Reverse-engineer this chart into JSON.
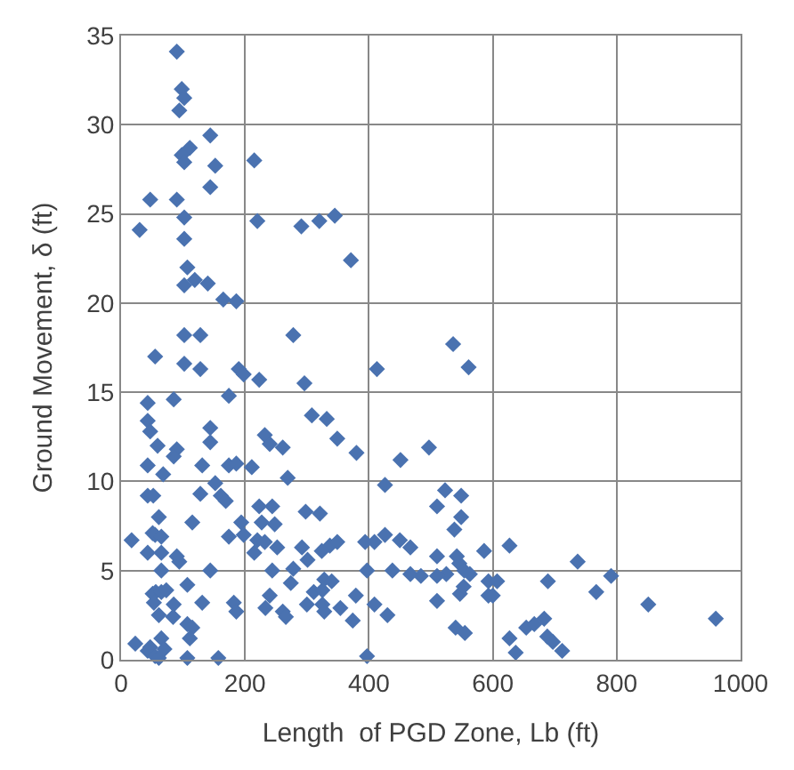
{
  "chart_data": {
    "type": "scatter",
    "xlabel": "Length  of PGD Zone, Lb (ft)",
    "ylabel": "Ground Movement, δ (ft)",
    "xlim": [
      0,
      1000
    ],
    "xticks": [
      0,
      200,
      400,
      600,
      800,
      1000
    ],
    "ylim": [
      0,
      35
    ],
    "yticks": [
      0,
      5,
      10,
      15,
      20,
      25,
      30,
      35
    ],
    "grid": true,
    "marker": "diamond",
    "series": [
      {
        "color": "#4a72b0",
        "x": [
          90,
          98,
          102,
          94,
          144,
          111,
          98,
          102,
          152,
          215,
          144,
          47,
          90,
          102,
          30,
          220,
          291,
          320,
          345,
          371,
          102,
          107,
          102,
          119,
          140,
          165,
          186,
          102,
          128,
          278,
          55,
          102,
          128,
          190,
          198,
          223,
          296,
          413,
          536,
          561,
          43,
          85,
          174,
          43,
          47,
          144,
          144,
          59,
          90,
          85,
          308,
          332,
          232,
          240,
          261,
          349,
          380,
          497,
          451,
          43,
          131,
          68,
          174,
          186,
          211,
          152,
          161,
          169,
          128,
          269,
          426,
          523,
          549,
          510,
          549,
          43,
          52,
          61,
          115,
          223,
          244,
          227,
          248,
          298,
          321,
          194,
          174,
          198,
          51,
          55,
          65,
          17,
          220,
          232,
          252,
          292,
          337,
          349,
          324,
          426,
          450,
          467,
          394,
          409,
          586,
          627,
          538,
          43,
          65,
          90,
          94,
          215,
          301,
          278,
          244,
          438,
          510,
          542,
          546,
          525,
          554,
          563,
          467,
          484,
          397,
          737,
          791,
          689,
          65,
          51,
          56,
          65,
          73,
          53,
          61,
          85,
          107,
          131,
          144,
          182,
          186,
          233,
          240,
          261,
          266,
          274,
          300,
          311,
          325,
          328,
          340,
          325,
          328,
          354,
          379,
          374,
          409,
          430,
          510,
          510,
          593,
          607,
          593,
          600,
          547,
          553,
          540,
          555,
          767,
          851,
          960,
          84,
          107,
          115,
          111,
          23,
          47,
          43,
          55,
          65,
          70,
          61,
          107,
          157,
          397,
          627,
          637,
          654,
          667,
          683,
          688,
          697,
          712
        ],
        "values": [
          34.1,
          32.0,
          31.5,
          30.8,
          29.4,
          28.7,
          28.3,
          27.9,
          27.7,
          28.0,
          26.5,
          25.8,
          25.8,
          24.8,
          24.1,
          24.6,
          24.3,
          24.6,
          24.9,
          22.4,
          23.6,
          22.0,
          21.0,
          21.3,
          21.1,
          20.2,
          20.1,
          18.2,
          18.2,
          18.2,
          17.0,
          16.6,
          16.3,
          16.3,
          16.0,
          15.7,
          15.5,
          16.3,
          17.7,
          16.4,
          14.4,
          14.6,
          14.8,
          13.4,
          12.8,
          13.0,
          12.2,
          12.0,
          11.8,
          11.4,
          13.7,
          13.5,
          12.6,
          12.1,
          11.9,
          12.4,
          11.6,
          11.9,
          11.2,
          10.9,
          10.9,
          10.4,
          10.9,
          11.0,
          10.8,
          9.9,
          9.2,
          8.9,
          9.3,
          10.2,
          9.8,
          9.5,
          9.2,
          8.6,
          8.0,
          9.2,
          9.2,
          8.0,
          7.7,
          8.6,
          8.6,
          7.7,
          7.6,
          8.3,
          8.2,
          7.7,
          6.9,
          7.0,
          7.1,
          7.0,
          6.9,
          6.7,
          6.7,
          6.6,
          6.3,
          6.3,
          6.4,
          6.6,
          6.1,
          7.0,
          6.7,
          6.3,
          6.6,
          6.6,
          6.1,
          6.4,
          7.3,
          6.0,
          6.0,
          5.8,
          5.5,
          6.0,
          5.6,
          5.1,
          5.0,
          5.0,
          5.8,
          5.8,
          5.4,
          4.8,
          5.0,
          4.8,
          4.8,
          4.7,
          5.0,
          5.5,
          4.7,
          4.4,
          5.0,
          3.7,
          3.8,
          3.8,
          3.9,
          3.2,
          2.5,
          3.1,
          4.2,
          3.2,
          5.0,
          3.2,
          2.7,
          2.9,
          3.6,
          2.7,
          2.4,
          4.3,
          3.1,
          3.8,
          3.9,
          4.5,
          4.4,
          3.1,
          2.7,
          2.9,
          3.6,
          2.2,
          3.1,
          2.5,
          4.7,
          3.3,
          4.4,
          4.4,
          3.6,
          3.6,
          3.7,
          4.1,
          1.8,
          1.5,
          3.8,
          3.1,
          2.3,
          2.4,
          2.0,
          1.8,
          1.2,
          0.9,
          0.7,
          0.5,
          0.2,
          1.2,
          0.6,
          0.1,
          0.1,
          0.1,
          0.2,
          1.2,
          0.4,
          1.8,
          2.0,
          2.3,
          1.3,
          1.0,
          0.5
        ]
      }
    ]
  }
}
